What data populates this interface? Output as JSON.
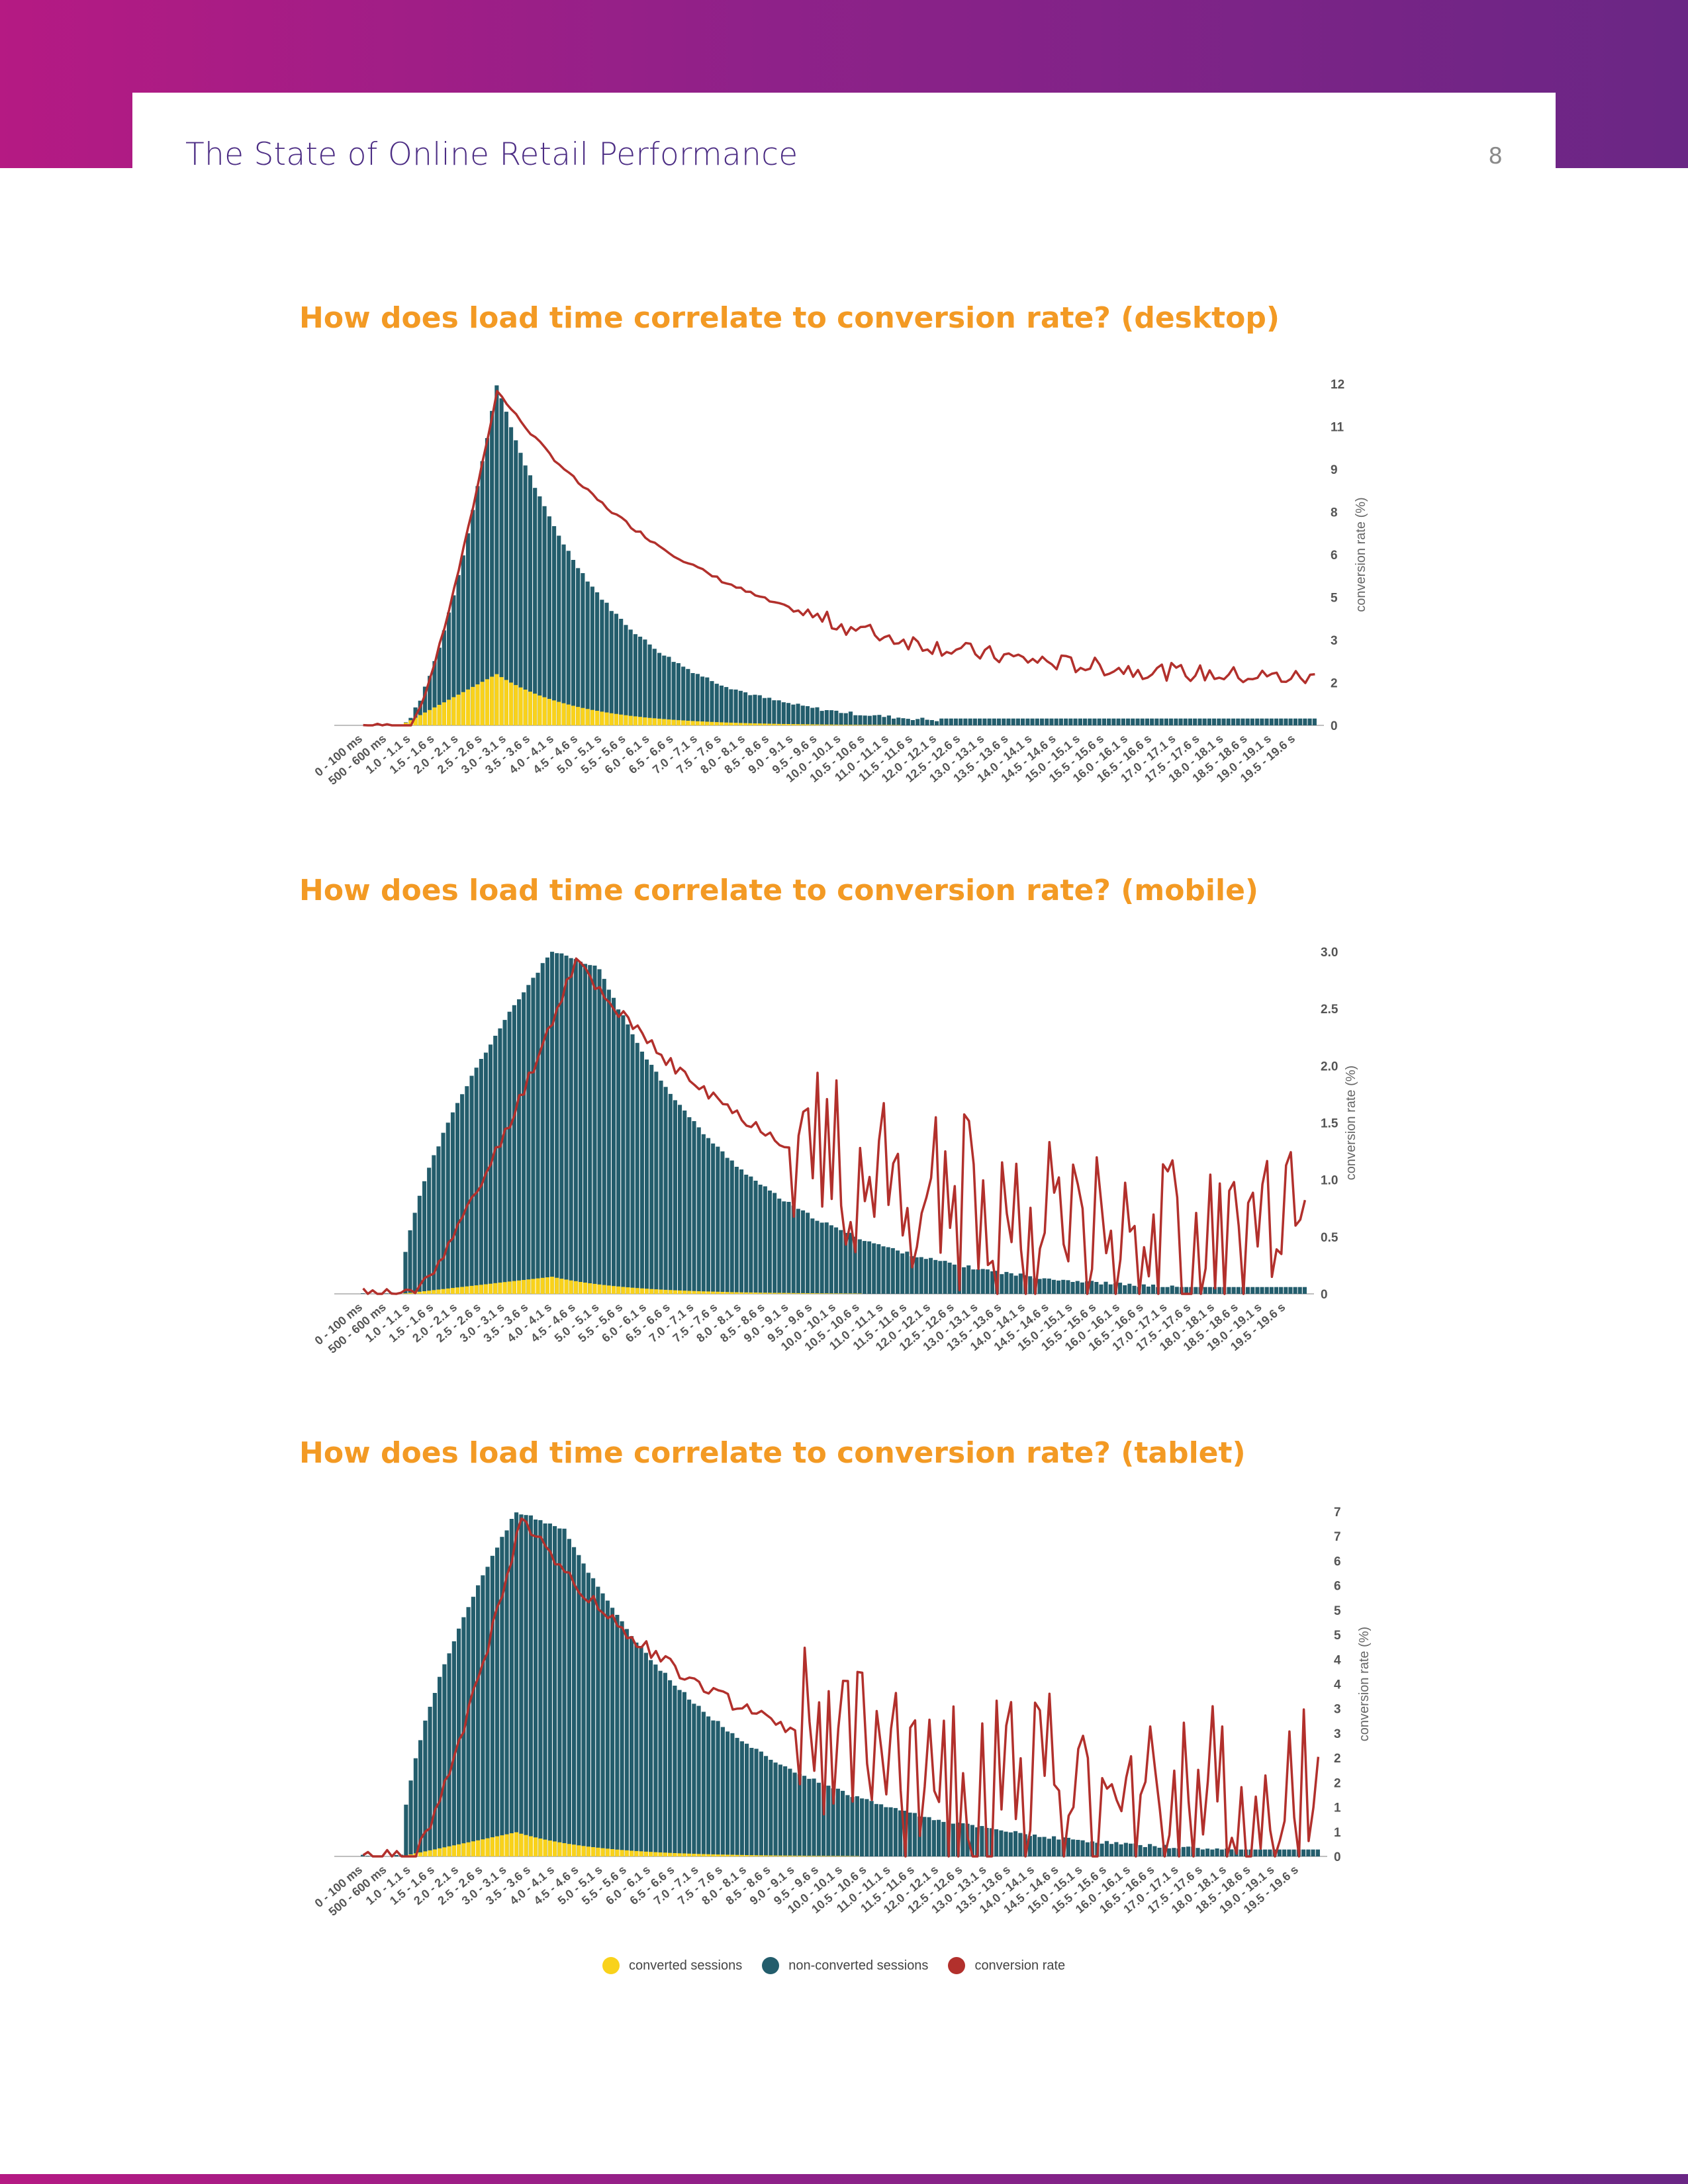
{
  "header": {
    "title": "The State of Online Retail Performance",
    "page_number": "8"
  },
  "colors": {
    "converted": "#f9d21b",
    "non_converted": "#235d6c",
    "conversion_rate": "#b2302c",
    "title": "#f39a24",
    "brand_purple": "#4c2d84"
  },
  "legend": [
    {
      "label": "converted sessions",
      "color": "#f9d21b"
    },
    {
      "label": "non-converted sessions",
      "color": "#235d6c"
    },
    {
      "label": "conversion rate",
      "color": "#b2302c"
    }
  ],
  "x_tick_labels": [
    "0 - 100 ms",
    "500 - 600 ms",
    "1.0 - 1.1 s",
    "1.5 - 1.6 s",
    "2.0 - 2.1 s",
    "2.5 - 2.6 s",
    "3.0 - 3.1 s",
    "3.5 - 3.6 s",
    "4.0 - 4.1 s",
    "4.5 - 4.6 s",
    "5.0 - 5.1 s",
    "5.5 - 5.6 s",
    "6.0 - 6.1 s",
    "6.5 - 6.6 s",
    "7.0 - 7.1 s",
    "7.5 - 7.6 s",
    "8.0 - 8.1 s",
    "8.5 - 8.6 s",
    "9.0 - 9.1 s",
    "9.5 - 9.6 s",
    "10.0 - 10.1 s",
    "10.5 - 10.6 s",
    "11.0 - 11.1 s",
    "11.5 - 11.6 s",
    "12.0 - 12.1 s",
    "12.5 - 12.6 s",
    "13.0 - 13.1 s",
    "13.5 - 13.6 s",
    "14.0 - 14.1 s",
    "14.5 - 14.6 s",
    "15.0 - 15.1 s",
    "15.5 - 15.6 s",
    "16.0 - 16.1 s",
    "16.5 - 16.6 s",
    "17.0 - 17.1 s",
    "17.5 - 17.6 s",
    "18.0 - 18.1 s",
    "18.5 - 18.6 s",
    "19.0 - 19.1 s",
    "19.5 - 19.6 s"
  ],
  "chart_data": [
    {
      "type": "bar",
      "title": "How does load time correlate to conversion rate? (desktop)",
      "y2label": "conversion rate (%)",
      "y2ticks": [
        "12",
        "11",
        "9",
        "8",
        "6",
        "5",
        "3",
        "2",
        "0"
      ],
      "y2lim": [
        0,
        12.7
      ],
      "series": [
        {
          "name": "converted sessions",
          "values_relative": [
            0,
            0,
            0,
            0,
            0,
            0,
            0,
            0,
            0,
            0,
            0,
            0,
            0,
            0,
            0,
            0,
            0,
            0,
            0,
            0,
            0,
            0,
            0,
            0,
            0,
            0,
            0,
            0,
            0,
            0,
            0,
            0,
            0,
            0,
            0,
            0,
            0,
            0,
            0,
            0,
            0,
            0,
            0,
            0,
            0,
            0,
            0,
            0,
            0,
            0,
            0,
            0,
            0,
            0,
            0,
            0,
            0,
            0,
            0,
            0,
            0,
            0,
            0,
            0,
            0,
            0,
            0,
            0,
            0,
            0,
            0,
            0,
            0,
            0,
            0,
            0,
            0,
            0,
            0,
            0,
            0,
            0,
            0,
            0,
            0,
            0,
            0,
            0,
            0,
            0,
            0,
            0,
            0,
            0,
            0,
            0,
            0,
            0,
            0,
            0,
            0,
            0,
            0,
            0,
            0,
            0,
            0,
            0,
            0,
            0,
            0,
            0,
            0,
            0,
            0,
            0,
            0,
            0,
            0,
            0,
            0,
            0,
            0,
            0,
            0,
            0,
            0,
            0,
            0,
            0,
            0,
            0,
            0,
            0,
            0,
            0,
            0,
            0,
            0,
            0,
            0,
            0,
            0,
            0,
            0,
            0,
            0,
            0,
            0,
            0,
            0,
            0,
            0,
            0,
            0,
            0,
            0,
            0,
            0,
            0,
            0,
            0,
            0,
            0,
            0,
            0,
            0,
            0,
            0,
            0,
            0,
            0,
            0,
            0,
            0,
            0,
            0,
            0,
            0,
            0,
            0,
            0,
            0,
            0,
            0,
            0,
            0,
            0,
            0,
            0,
            0,
            0,
            0,
            0,
            0,
            0,
            0,
            0,
            0,
            0,
            0,
            0
          ]
        },
        {
          "name": "non-converted sessions",
          "values_relative": []
        },
        {
          "name": "conversion rate",
          "values": []
        }
      ]
    },
    {
      "type": "bar",
      "title": "How does load time correlate to conversion rate? (mobile)",
      "y2label": "conversion rate (%)",
      "y2ticks": [
        "3.0",
        "2.5",
        "2.0",
        "1.5",
        "1.0",
        "0.5",
        "0"
      ],
      "y2lim": [
        0,
        3.0
      ],
      "series": [
        {
          "name": "converted sessions",
          "values_relative": []
        },
        {
          "name": "non-converted sessions",
          "values_relative": []
        },
        {
          "name": "conversion rate",
          "values": []
        }
      ]
    },
    {
      "type": "bar",
      "title": "How does load time correlate to conversion rate? (tablet)",
      "y2label": "conversion rate (%)",
      "y2ticks": [
        "7",
        "7",
        "6",
        "6",
        "5",
        "5",
        "4",
        "4",
        "3",
        "3",
        "2",
        "2",
        "1",
        "1",
        "0"
      ],
      "y2lim": [
        0,
        7
      ],
      "series": [
        {
          "name": "converted sessions",
          "values_relative": []
        },
        {
          "name": "non-converted sessions",
          "values_relative": []
        },
        {
          "name": "conversion rate",
          "values": []
        }
      ]
    }
  ]
}
